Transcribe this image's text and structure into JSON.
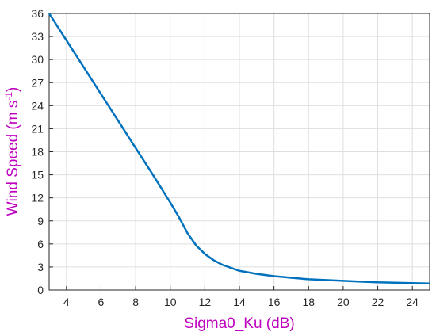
{
  "chart_data": {
    "type": "line",
    "xlabel": "Sigma0_Ku (dB)",
    "ylabel": [
      "Wind Speed (m s",
      "-1",
      ")"
    ],
    "x": [
      3,
      4,
      5,
      6,
      7,
      8,
      9,
      10,
      10.5,
      11,
      11.5,
      12,
      12.5,
      13,
      14,
      15,
      16,
      17,
      18,
      19,
      20,
      21,
      22,
      23,
      24,
      25
    ],
    "series": [
      {
        "color": "#0072bd",
        "values": [
          36,
          32.5,
          29,
          25.5,
          22,
          18.5,
          15,
          11.4,
          9.5,
          7.4,
          5.8,
          4.7,
          3.9,
          3.3,
          2.5,
          2.1,
          1.8,
          1.6,
          1.4,
          1.3,
          1.2,
          1.1,
          1.0,
          0.95,
          0.9,
          0.85
        ]
      }
    ],
    "xlim": [
      3,
      25
    ],
    "ylim": [
      0,
      36
    ],
    "xticks": [
      4,
      6,
      8,
      10,
      12,
      14,
      16,
      18,
      20,
      22,
      24
    ],
    "yticks": [
      0,
      3,
      6,
      9,
      12,
      15,
      18,
      21,
      24,
      27,
      30,
      33,
      36
    ],
    "grid": true
  }
}
